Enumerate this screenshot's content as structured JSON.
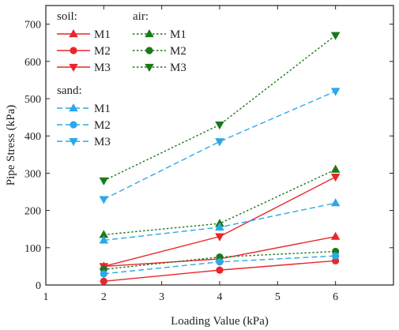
{
  "chart_data": {
    "type": "line",
    "xlabel": "Loading Value (kPa)",
    "ylabel": "Pipe Stress (kPa)",
    "xlim": [
      1,
      7
    ],
    "ylim": [
      0,
      750
    ],
    "xticks": [
      1,
      2,
      3,
      4,
      5,
      6
    ],
    "yticks": [
      0,
      100,
      200,
      300,
      400,
      500,
      600,
      700
    ],
    "grid": false,
    "legend_placement": "top-left",
    "legend_groups": [
      {
        "title": "soil:",
        "color": "#e8262b",
        "dash": "solid",
        "series": [
          "soil-M1",
          "soil-M2",
          "soil-M3"
        ]
      },
      {
        "title": "air:",
        "color": "#1a7a1a",
        "dash": "dot",
        "series": [
          "air-M1",
          "air-M2",
          "air-M3"
        ]
      },
      {
        "title": "sand:",
        "color": "#2ba8ea",
        "dash": "dash",
        "series": [
          "sand-M1",
          "sand-M2",
          "sand-M3"
        ]
      }
    ],
    "series": [
      {
        "id": "soil-M1",
        "name": "M1",
        "group": "soil",
        "marker": "triangle-up",
        "color": "#e8262b",
        "dash": "solid",
        "x": [
          2,
          4,
          6
        ],
        "y": [
          50,
          70,
          130
        ]
      },
      {
        "id": "soil-M2",
        "name": "M2",
        "group": "soil",
        "marker": "circle",
        "color": "#e8262b",
        "dash": "solid",
        "x": [
          2,
          4,
          6
        ],
        "y": [
          10,
          40,
          65
        ]
      },
      {
        "id": "soil-M3",
        "name": "M3",
        "group": "soil",
        "marker": "triangle-down",
        "color": "#e8262b",
        "dash": "solid",
        "x": [
          2,
          4,
          6
        ],
        "y": [
          50,
          130,
          290
        ]
      },
      {
        "id": "air-M1",
        "name": "M1",
        "group": "air",
        "marker": "triangle-up",
        "color": "#1a7a1a",
        "dash": "dot",
        "x": [
          2,
          4,
          6
        ],
        "y": [
          135,
          165,
          310
        ]
      },
      {
        "id": "air-M2",
        "name": "M2",
        "group": "air",
        "marker": "circle",
        "color": "#1a7a1a",
        "dash": "dot",
        "x": [
          2,
          4,
          6
        ],
        "y": [
          42,
          75,
          90
        ]
      },
      {
        "id": "air-M3",
        "name": "M3",
        "group": "air",
        "marker": "triangle-down",
        "color": "#1a7a1a",
        "dash": "dot",
        "x": [
          2,
          4,
          6
        ],
        "y": [
          280,
          430,
          670
        ]
      },
      {
        "id": "sand-M1",
        "name": "M1",
        "group": "sand",
        "marker": "triangle-up",
        "color": "#2ba8ea",
        "dash": "dash",
        "x": [
          2,
          4,
          6
        ],
        "y": [
          120,
          155,
          220
        ]
      },
      {
        "id": "sand-M2",
        "name": "M2",
        "group": "sand",
        "marker": "circle",
        "color": "#2ba8ea",
        "dash": "dash",
        "x": [
          2,
          4,
          6
        ],
        "y": [
          30,
          62,
          78
        ]
      },
      {
        "id": "sand-M3",
        "name": "M3",
        "group": "sand",
        "marker": "triangle-down",
        "color": "#2ba8ea",
        "dash": "dash",
        "x": [
          2,
          4,
          6
        ],
        "y": [
          230,
          385,
          520
        ]
      }
    ]
  }
}
